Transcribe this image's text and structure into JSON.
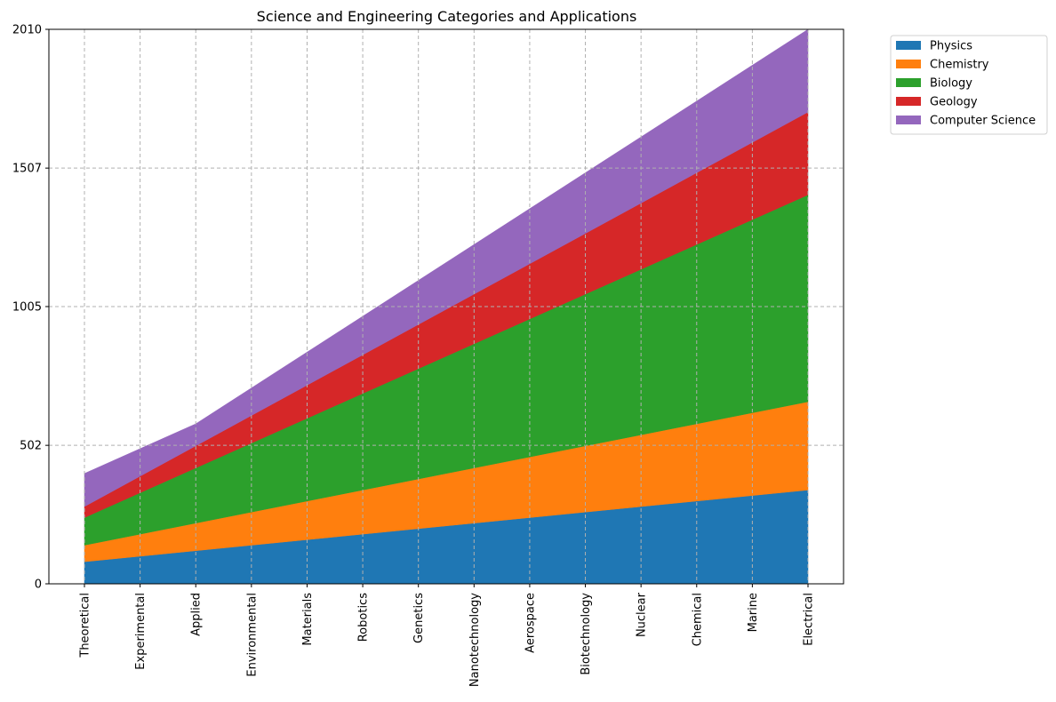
{
  "chart_data": {
    "type": "area",
    "stacked": true,
    "title": "Science and Engineering Categories and Applications",
    "xlabel": "",
    "ylabel": "",
    "categories": [
      "Theoretical",
      "Experimental",
      "Applied",
      "Environmental",
      "Materials",
      "Robotics",
      "Genetics",
      "Nanotechnology",
      "Aerospace",
      "Biotechnology",
      "Nuclear",
      "Chemical",
      "Marine",
      "Electrical"
    ],
    "series": [
      {
        "name": "Physics",
        "color": "#1f77b4",
        "values": [
          80,
          100,
          120,
          140,
          160,
          180,
          200,
          220,
          240,
          260,
          280,
          300,
          320,
          340
        ]
      },
      {
        "name": "Chemistry",
        "color": "#ff7f0e",
        "values": [
          60,
          80,
          100,
          120,
          140,
          160,
          180,
          200,
          220,
          240,
          260,
          280,
          300,
          320
        ]
      },
      {
        "name": "Biology",
        "color": "#2ca02c",
        "values": [
          100,
          150,
          200,
          250,
          300,
          350,
          400,
          450,
          500,
          550,
          600,
          650,
          700,
          750
        ]
      },
      {
        "name": "Geology",
        "color": "#d62728",
        "values": [
          40,
          60,
          80,
          100,
          120,
          140,
          160,
          180,
          200,
          220,
          240,
          260,
          280,
          300
        ]
      },
      {
        "name": "Computer Science",
        "color": "#9467bd",
        "values": [
          120,
          100,
          80,
          100,
          120,
          140,
          160,
          180,
          200,
          220,
          240,
          260,
          280,
          300
        ]
      }
    ],
    "ylim": [
      0,
      2010
    ],
    "yticks": [
      0,
      502,
      1005,
      1507,
      2010
    ],
    "grid": true,
    "legend_position": "outside-top-right"
  }
}
